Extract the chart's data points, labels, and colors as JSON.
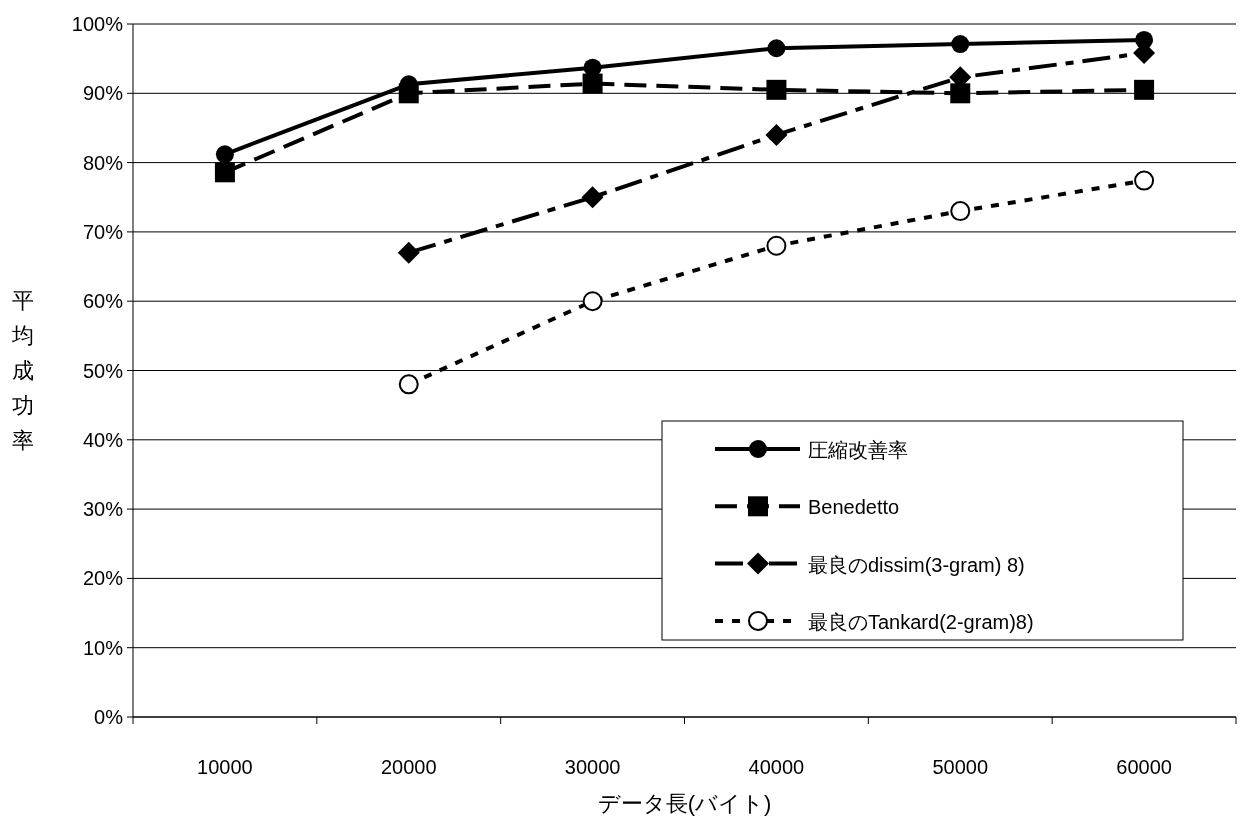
{
  "chart_data": {
    "type": "line",
    "xlabel": "データ長(バイト)",
    "ylabel": "平均成功率",
    "categories": [
      "10000",
      "20000",
      "30000",
      "40000",
      "50000",
      "60000"
    ],
    "series": [
      {
        "name": "圧縮改善率",
        "color": "#000000",
        "marker": "circle",
        "line_style": "solid",
        "values": [
          81.2,
          91.3,
          93.7,
          96.5,
          97.1,
          97.7
        ]
      },
      {
        "name": "Benedetto",
        "color": "#000000",
        "marker": "square",
        "line_style": "dashed",
        "values": [
          78.6,
          90.0,
          91.4,
          90.5,
          90.0,
          90.5
        ]
      },
      {
        "name": "最良のdissim(3-gram) 8)",
        "color": "#000000",
        "marker": "diamond",
        "line_style": "dashdot",
        "values": [
          null,
          67.0,
          75.0,
          84.0,
          92.3,
          95.8
        ]
      },
      {
        "name": "最良のTankard(2-gram)8)",
        "color": "#000000",
        "marker": "circle-open",
        "line_style": "dotted",
        "values": [
          null,
          48.0,
          60.0,
          68.0,
          73.0,
          77.4
        ]
      }
    ],
    "ylim": [
      0,
      100
    ],
    "yticks": [
      {
        "value": 0,
        "label": "0%"
      },
      {
        "value": 10,
        "label": "10%"
      },
      {
        "value": 20,
        "label": "20%"
      },
      {
        "value": 30,
        "label": "30%"
      },
      {
        "value": 40,
        "label": "40%"
      },
      {
        "value": 50,
        "label": "50%"
      },
      {
        "value": 60,
        "label": "60%"
      },
      {
        "value": 70,
        "label": "70%"
      },
      {
        "value": 80,
        "label": "80%"
      },
      {
        "value": 90,
        "label": "90%"
      },
      {
        "value": 100,
        "label": "100%"
      }
    ],
    "grid": "y",
    "legend": "bottom right"
  }
}
